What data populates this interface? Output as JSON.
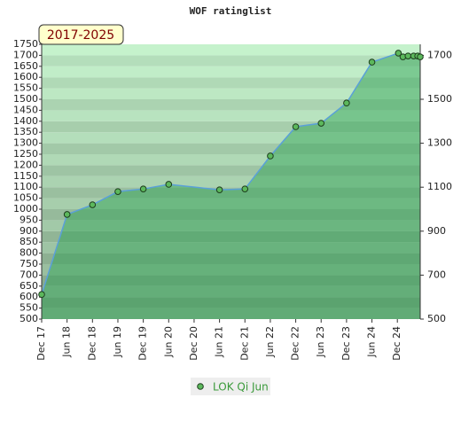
{
  "chart_data": {
    "type": "line",
    "title": "WOF ratinglist",
    "annotation": "2017-2025",
    "x": [
      2017.92,
      2018.42,
      2018.92,
      2019.42,
      2019.92,
      2020.42,
      2021.42,
      2021.92,
      2022.42,
      2022.92,
      2023.42,
      2023.92,
      2024.42,
      2024.94,
      2025.03,
      2025.13,
      2025.24,
      2025.32,
      2025.37
    ],
    "series": [
      {
        "name": "LOK Qi Jun",
        "color": "#5aa0d8",
        "marker_color": "#5cb85c",
        "values": [
          612,
          976,
          1020,
          1080,
          1092,
          1113,
          1088,
          1092,
          1242,
          1375,
          1391,
          1483,
          1669,
          1710,
          1693,
          1697,
          1697,
          1697,
          1693
        ]
      }
    ],
    "xlim": [
      2017.92,
      2025.37
    ],
    "xticks": [
      {
        "value": 2017.92,
        "label": "Dec 17"
      },
      {
        "value": 2018.42,
        "label": "Jun 18"
      },
      {
        "value": 2018.92,
        "label": "Dec 18"
      },
      {
        "value": 2019.42,
        "label": "Jun 19"
      },
      {
        "value": 2019.92,
        "label": "Dec 19"
      },
      {
        "value": 2020.42,
        "label": "Jun 20"
      },
      {
        "value": 2020.92,
        "label": "Dec 20"
      },
      {
        "value": 2021.42,
        "label": "Jun 21"
      },
      {
        "value": 2021.92,
        "label": "Dec 21"
      },
      {
        "value": 2022.42,
        "label": "Jun 22"
      },
      {
        "value": 2022.92,
        "label": "Dec 22"
      },
      {
        "value": 2023.42,
        "label": "Jun 23"
      },
      {
        "value": 2023.92,
        "label": "Dec 23"
      },
      {
        "value": 2024.42,
        "label": "Jun 24"
      },
      {
        "value": 2024.92,
        "label": "Dec 24"
      }
    ],
    "ylim": [
      500,
      1750
    ],
    "yticks": [
      500,
      550,
      600,
      650,
      700,
      750,
      800,
      850,
      900,
      950,
      1000,
      1050,
      1100,
      1150,
      1200,
      1250,
      1300,
      1350,
      1400,
      1450,
      1500,
      1550,
      1600,
      1650,
      1700,
      1750
    ],
    "y2lim": [
      500,
      1750
    ],
    "y2ticks": [
      500,
      700,
      900,
      1100,
      1300,
      1500,
      1700
    ],
    "legend": "bottom"
  }
}
